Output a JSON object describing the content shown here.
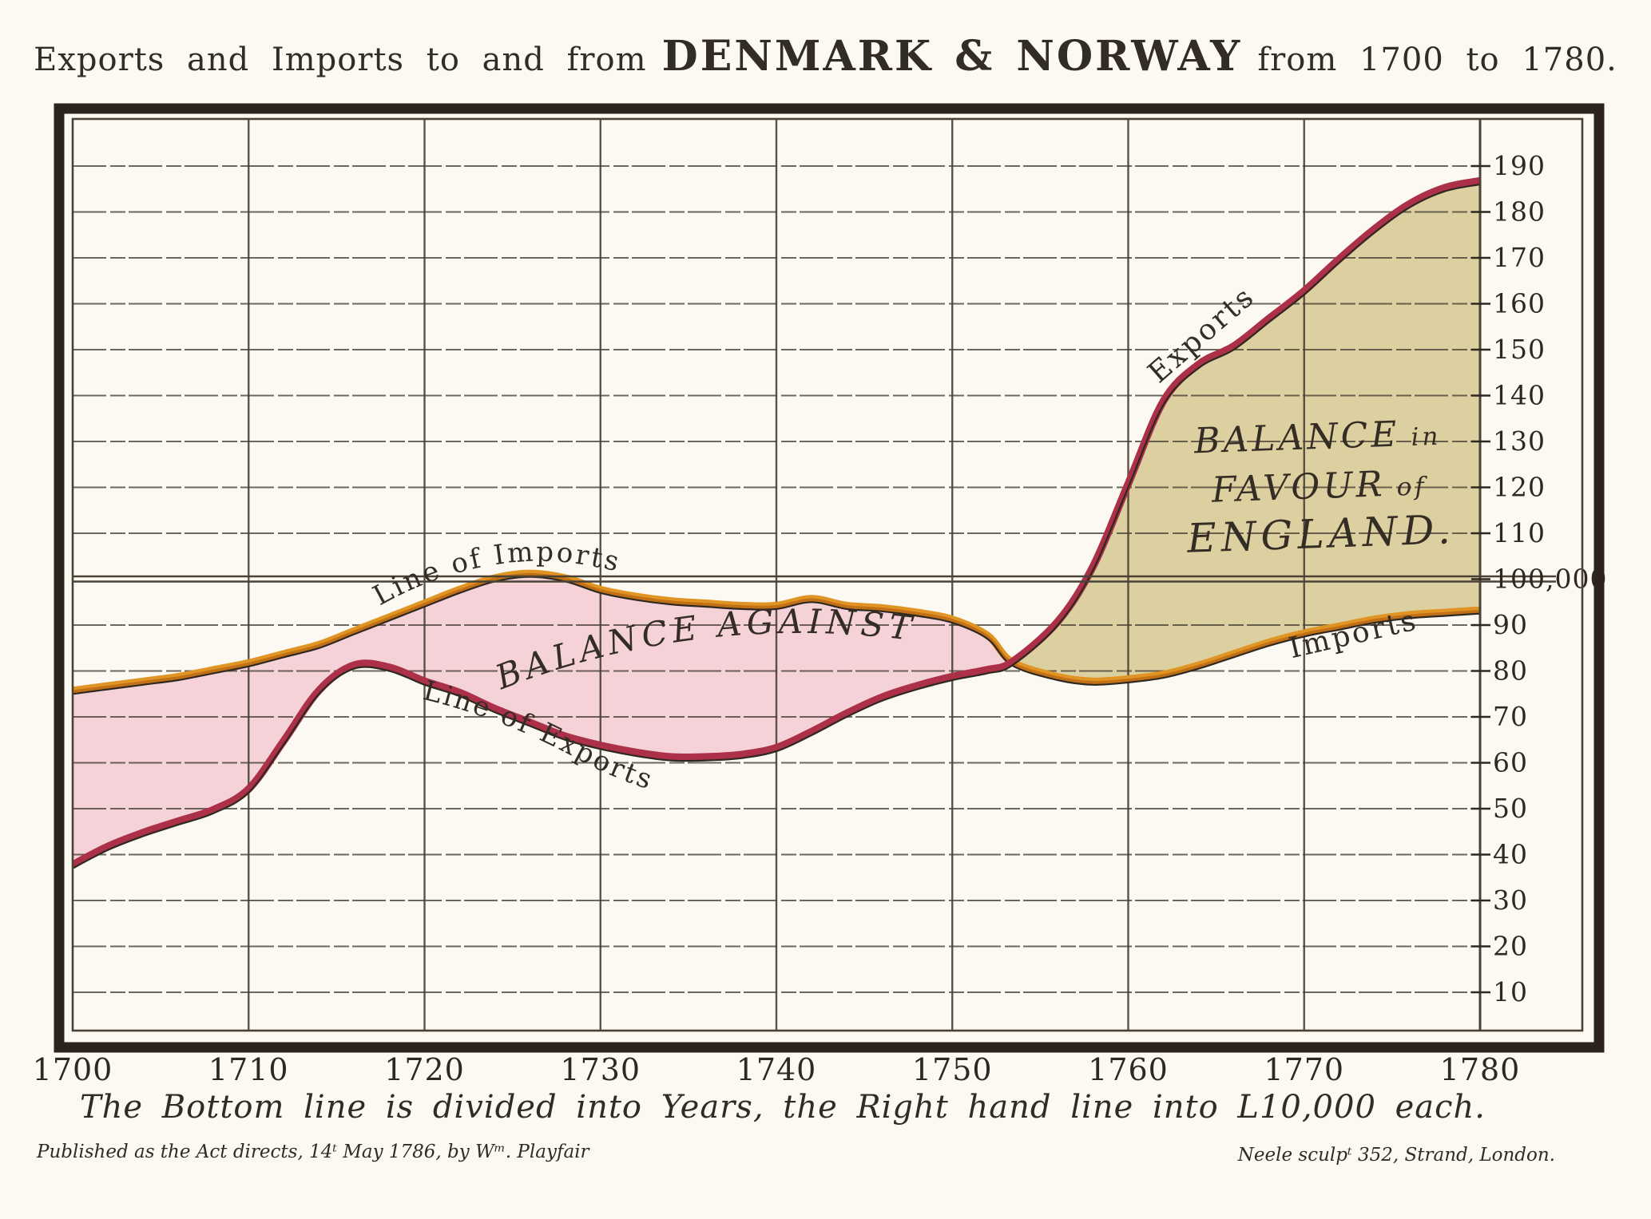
{
  "title": {
    "part1": "Exports and Imports to and from",
    "part2": "DENMARK & NORWAY",
    "part3": "from 1700 to 1780."
  },
  "caption": "The Bottom line is divided into Years, the Right hand line into L10,000 each.",
  "credits": {
    "published": "Published as the Act directs, 14ᵗ May 1786, by Wᵐ. Playfair",
    "engraver": "Neele sculpᵗ 352, Strand, London."
  },
  "colors": {
    "paper": "#fcf9f2",
    "ink": "#2f2820",
    "grid": "#4a4236",
    "frame": "#2b231c",
    "balance_against_fill": "#f5d2d8",
    "balance_favour_fill": "#ddd0a0",
    "exports_line": "#ab3048",
    "imports_line": "#e09424",
    "imports_line_core": "#bf6c15"
  },
  "chart_data": {
    "type": "area",
    "title": "Exports and Imports to and from DENMARK & NORWAY from 1700 to 1780.",
    "xlabel": "Years",
    "ylabel": "L10,000 each",
    "x": {
      "min": 1700,
      "max": 1780,
      "ticks": [
        1700,
        1710,
        1720,
        1730,
        1740,
        1750,
        1760,
        1770,
        1780
      ],
      "gridline_years": [
        1710,
        1720,
        1730,
        1740,
        1750,
        1760,
        1770
      ]
    },
    "y": {
      "min": 0,
      "max": 200,
      "tick_min": 10,
      "tick_max": 190,
      "tick_step": 10,
      "special_tick": {
        "value": 100,
        "label": "100,000"
      }
    },
    "legend_position": "on-curve-labels",
    "grid": true,
    "series": [
      {
        "name": "Imports",
        "color": "#e09424",
        "points": [
          [
            1700,
            75
          ],
          [
            1702,
            76
          ],
          [
            1704,
            77
          ],
          [
            1706,
            78
          ],
          [
            1708,
            79.5
          ],
          [
            1710,
            81
          ],
          [
            1712,
            83
          ],
          [
            1714,
            85
          ],
          [
            1716,
            88
          ],
          [
            1718,
            91
          ],
          [
            1720,
            94
          ],
          [
            1722,
            97
          ],
          [
            1724,
            99.5
          ],
          [
            1726,
            100.5
          ],
          [
            1728,
            99.5
          ],
          [
            1730,
            97
          ],
          [
            1732,
            95.5
          ],
          [
            1734,
            94.5
          ],
          [
            1736,
            94
          ],
          [
            1738,
            93.5
          ],
          [
            1740,
            93.5
          ],
          [
            1742,
            95
          ],
          [
            1744,
            93.5
          ],
          [
            1746,
            93
          ],
          [
            1748,
            92
          ],
          [
            1750,
            90.5
          ],
          [
            1752,
            87
          ],
          [
            1753.4,
            81.2
          ],
          [
            1756,
            78
          ],
          [
            1758,
            77
          ],
          [
            1760,
            77.5
          ],
          [
            1762,
            78.5
          ],
          [
            1764,
            80.5
          ],
          [
            1766,
            83
          ],
          [
            1768,
            85.5
          ],
          [
            1770,
            87.5
          ],
          [
            1772,
            89
          ],
          [
            1774,
            90.5
          ],
          [
            1776,
            91.5
          ],
          [
            1778,
            92
          ],
          [
            1780,
            92.5
          ]
        ]
      },
      {
        "name": "Exports",
        "color": "#ab3048",
        "points": [
          [
            1700,
            37
          ],
          [
            1702,
            41
          ],
          [
            1704,
            44
          ],
          [
            1706,
            46.5
          ],
          [
            1708,
            49
          ],
          [
            1710,
            53.5
          ],
          [
            1712,
            64
          ],
          [
            1714,
            75
          ],
          [
            1716,
            80.5
          ],
          [
            1718,
            80
          ],
          [
            1720,
            77
          ],
          [
            1722,
            74.5
          ],
          [
            1724,
            71
          ],
          [
            1726,
            68
          ],
          [
            1728,
            65
          ],
          [
            1730,
            63
          ],
          [
            1732,
            61.5
          ],
          [
            1734,
            60.5
          ],
          [
            1736,
            60.5
          ],
          [
            1738,
            61
          ],
          [
            1740,
            62.5
          ],
          [
            1742,
            66
          ],
          [
            1744,
            70
          ],
          [
            1746,
            73.5
          ],
          [
            1748,
            76
          ],
          [
            1750,
            78
          ],
          [
            1752,
            79.5
          ],
          [
            1753.4,
            81.2
          ],
          [
            1756,
            90
          ],
          [
            1758,
            102
          ],
          [
            1760,
            120
          ],
          [
            1762,
            138
          ],
          [
            1764,
            146
          ],
          [
            1766,
            150
          ],
          [
            1768,
            156
          ],
          [
            1770,
            162
          ],
          [
            1772,
            169
          ],
          [
            1774,
            175.5
          ],
          [
            1776,
            181
          ],
          [
            1778,
            184.5
          ],
          [
            1780,
            186
          ]
        ]
      }
    ],
    "crossing_point": {
      "year": 1753.4,
      "value": 81.2
    },
    "regions": [
      {
        "label": "BALANCE AGAINST",
        "fill": "#f5d2d8",
        "from": 1700,
        "to": 1753.4,
        "meaning": "imports exceed exports"
      },
      {
        "label": "BALANCE in FAVOUR of ENGLAND.",
        "fill": "#ddd0a0",
        "from": 1753.4,
        "to": 1780,
        "meaning": "exports exceed imports"
      }
    ],
    "annotations": {
      "line_of_imports": "Line of Imports",
      "line_of_exports": "Line of Exports",
      "balance_against": "BALANCE AGAINST",
      "balance_in_favour": [
        {
          "big": "BALANCE",
          "small": "in"
        },
        {
          "big": "FAVOUR",
          "small": "of"
        },
        {
          "big": "ENGLAND.",
          "small": ""
        }
      ],
      "exports_label": "Exports",
      "imports_label": "Imports"
    }
  }
}
